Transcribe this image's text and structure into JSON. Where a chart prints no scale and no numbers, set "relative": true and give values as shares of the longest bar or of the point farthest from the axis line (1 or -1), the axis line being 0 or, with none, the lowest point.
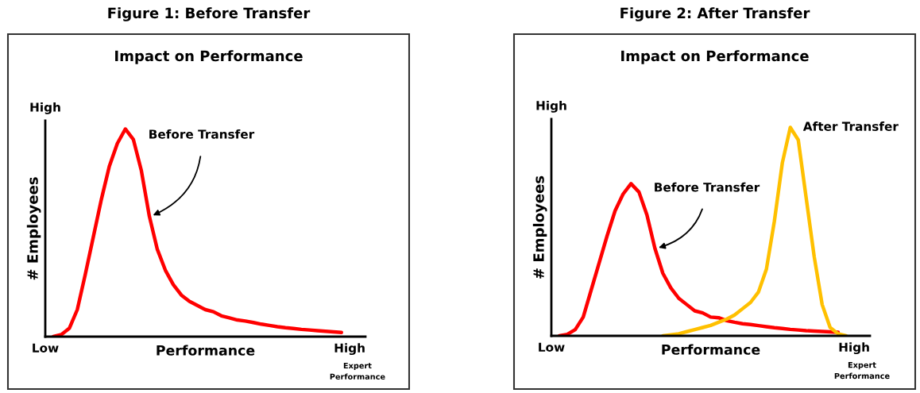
{
  "chart_data": [
    {
      "type": "line",
      "title": "Figure 1: Before Transfer",
      "subtitle": "Impact on Performance",
      "xlabel": "Performance",
      "ylabel": "# Employees",
      "relative": true,
      "categories": [
        null,
        null,
        null,
        null,
        null,
        null,
        null,
        null,
        null,
        null,
        null,
        null,
        null,
        null,
        null,
        null,
        null,
        null,
        null,
        null,
        null,
        null,
        null,
        null,
        null,
        null,
        null,
        null,
        null,
        null,
        null,
        null,
        null,
        null,
        null,
        null,
        null,
        null,
        null,
        null,
        null
      ],
      "series": [
        {
          "name": "Before Transfer",
          "color": "#ff0000",
          "values": [
            null,
            0.0,
            0.01,
            0.04,
            0.13,
            0.3,
            0.48,
            0.66,
            0.82,
            0.93,
            1.0,
            0.95,
            0.8,
            0.58,
            0.42,
            0.32,
            0.25,
            0.2,
            0.17,
            0.15,
            0.13,
            0.12,
            0.1,
            0.09,
            0.08,
            0.075,
            0.068,
            0.06,
            0.054,
            0.048,
            0.043,
            0.039,
            0.035,
            0.032,
            0.029,
            0.026,
            0.023,
            0.02,
            null,
            null,
            null
          ]
        }
      ],
      "annotations": [
        "High",
        "Low",
        "High",
        "Expert\nPerformance"
      ]
    },
    {
      "type": "line",
      "title": "Figure 2: After Transfer",
      "subtitle": "Impact on Performance",
      "xlabel": "Performance",
      "ylabel": "# Employees",
      "relative": true,
      "categories": [
        null,
        null,
        null,
        null,
        null,
        null,
        null,
        null,
        null,
        null,
        null,
        null,
        null,
        null,
        null,
        null,
        null,
        null,
        null,
        null,
        null,
        null,
        null,
        null,
        null,
        null,
        null,
        null,
        null,
        null,
        null,
        null,
        null,
        null,
        null,
        null,
        null,
        null,
        null,
        null,
        null
      ],
      "series": [
        {
          "name": "Before Transfer",
          "color": "#ff0000",
          "values": [
            null,
            0.0,
            0.007,
            0.03,
            0.09,
            0.22,
            0.35,
            0.48,
            0.6,
            0.68,
            0.73,
            0.69,
            0.58,
            0.42,
            0.3,
            0.23,
            0.18,
            0.15,
            0.12,
            0.11,
            0.09,
            0.087,
            0.073,
            0.065,
            0.058,
            0.054,
            0.049,
            0.044,
            0.039,
            0.035,
            0.031,
            0.028,
            0.025,
            0.023,
            0.021,
            0.019,
            0.017,
            null,
            null,
            null,
            null
          ]
        },
        {
          "name": "After Transfer",
          "color": "#ffc000",
          "values": [
            null,
            null,
            null,
            null,
            null,
            null,
            null,
            null,
            null,
            null,
            null,
            null,
            null,
            null,
            0.0,
            0.005,
            0.01,
            0.02,
            0.03,
            0.04,
            0.05,
            0.065,
            0.08,
            0.1,
            0.13,
            0.16,
            0.21,
            0.32,
            0.55,
            0.83,
            1.0,
            0.94,
            0.66,
            0.38,
            0.15,
            0.04,
            0.01,
            0.0,
            null,
            null,
            null
          ]
        }
      ],
      "annotations": [
        "High",
        "Low",
        "High",
        "Expert\nPerformance"
      ]
    }
  ]
}
